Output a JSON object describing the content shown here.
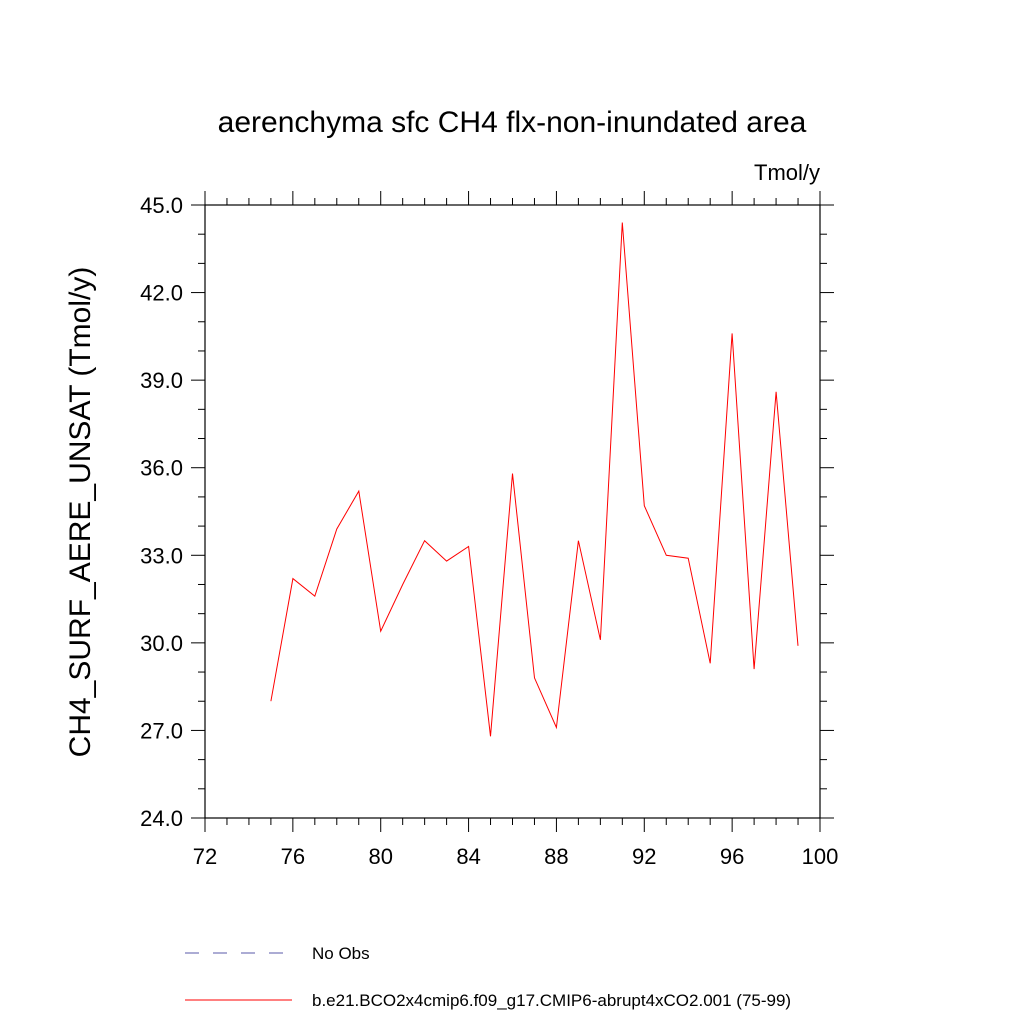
{
  "chart_data": {
    "type": "line",
    "title": "aerenchyma sfc CH4 flx-non-inundated area",
    "units": "Tmol/y",
    "xlabel": "",
    "ylabel": "CH4_SURF_AERE_UNSAT  (Tmol/y)",
    "xlim": [
      72,
      100
    ],
    "ylim": [
      24.0,
      45.0
    ],
    "x_ticks": [
      "72",
      "76",
      "80",
      "84",
      "88",
      "92",
      "96",
      "100"
    ],
    "y_ticks": [
      "24.0",
      "27.0",
      "30.0",
      "33.0",
      "36.0",
      "39.0",
      "42.0",
      "45.0"
    ],
    "grid": false,
    "legend_position": "bottom",
    "series": [
      {
        "name": "No Obs",
        "color": "#5a5aa8",
        "style": "dashed",
        "x": [],
        "values": []
      },
      {
        "name": "b.e21.BCO2x4cmip6.f09_g17.CMIP6-abrupt4xCO2.001 (75-99)",
        "color": "#ff0000",
        "style": "solid",
        "x": [
          75,
          76,
          77,
          78,
          79,
          80,
          81,
          82,
          83,
          84,
          85,
          86,
          87,
          88,
          89,
          90,
          91,
          92,
          93,
          94,
          95,
          96,
          97,
          98,
          99
        ],
        "values": [
          28.0,
          32.2,
          31.6,
          33.9,
          35.2,
          30.4,
          32.0,
          33.5,
          32.8,
          33.3,
          26.8,
          35.8,
          28.8,
          27.1,
          33.5,
          30.1,
          44.4,
          34.7,
          33.0,
          32.9,
          29.3,
          40.6,
          29.1,
          38.6,
          29.9
        ]
      }
    ]
  }
}
